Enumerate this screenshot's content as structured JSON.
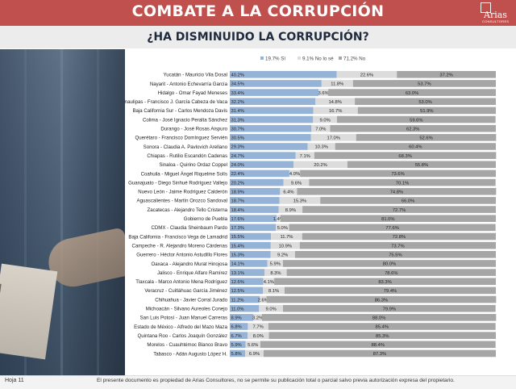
{
  "header": {
    "title": "COMBATE A LA CORRUPCIÓN",
    "logo_text": "Arias",
    "logo_subtitle": "CONSULTORES",
    "question": "¿HA DISMINUIDO LA CORRUPCIÓN?"
  },
  "photo": {
    "bill_text": "50 EURO"
  },
  "footer": {
    "page_label": "Hoja 11",
    "disclaimer": "El presente documento es propiedad de Arias Consultores, no se permite su publicación total o parcial salvo previa autorización expresa del propietario."
  },
  "colors": {
    "header_bg": "#c0504d",
    "si": "#95b3d7",
    "nolose": "#dcdcdc",
    "no": "#a6a6a6"
  },
  "chart_data": {
    "type": "bar",
    "orientation": "horizontal",
    "stacked": true,
    "percent_suffix": "%",
    "legend": {
      "placement": "top-right",
      "entries": [
        "19.7% Sí",
        "9.1% No lo sé",
        "71.2% No"
      ]
    },
    "categories": [
      "Yucatán - Mauricio Vila Dosal",
      "Nayarit - Antonio Echevarría García",
      "Hidalgo - Omar Fayad Meneses",
      "Tamaulipas - Francisco J. García Cabeza de Vaca",
      "Baja California Sur - Carlos Mendoza Davis",
      "Colima - José Ignacio Peralta Sánchez",
      "Durango - José Rosas Aispuro",
      "Querétaro - Francisco Domínguez Servién",
      "Sonora - Claudia A. Pavlovich Arellano",
      "Chiapas - Rutilio Escandón Cadenas",
      "Sinaloa - Quirino Ordaz Coppel",
      "Coahuila - Miguel Ángel Riquelme Solís",
      "Guanajuato - Diego Sinhué Rodríguez Vallejo",
      "Nuevo León - Jaime Rodríguez Calderón",
      "Aguascalientes - Martín Orozco Sandoval",
      "Zacatecas - Alejandro Tello Cristerna",
      "Gobierno de Puebla",
      "CDMX - Claudia Sheinbaum Pardo",
      "Baja California - Francisco Vega de Lamadrid",
      "Campeche - R. Alejandro Moreno Cárdenas",
      "Guerrero - Héctor Antonio Astudillo Flores",
      "Oaxaca - Alejandro Murat Hinojosa",
      "Jalisco - Enrique Alfaro Ramírez",
      "Tlaxcala - Marco Antonio Mena Rodríguez",
      "Veracruz - Cuitláhuac García Jiménez",
      "Chihuahua - Javier Corral Jurado",
      "Michoacán - Silvano Aureoles Conejo",
      "San Luis Potosí - Juan Manuel Carreras",
      "Estado de México - Alfredo del Mazo Maza",
      "Quintana Roo - Carlos Joaquín González",
      "Morelos - Cuauhtémoc Blanco Bravo",
      "Tabasco - Adán Augusto López H."
    ],
    "series": [
      {
        "name": "Sí",
        "color": "#95b3d7",
        "values": [
          40.2,
          34.5,
          33.4,
          32.2,
          31.4,
          31.3,
          30.7,
          30.5,
          29.3,
          24.7,
          24.0,
          22.4,
          20.2,
          18.9,
          18.7,
          18.4,
          17.6,
          17.3,
          15.5,
          15.4,
          15.3,
          14.1,
          13.1,
          12.6,
          12.5,
          11.2,
          11.0,
          8.9,
          6.8,
          6.7,
          5.9,
          5.8
        ]
      },
      {
        "name": "No lo sé",
        "color": "#dcdcdc",
        "values": [
          22.6,
          11.8,
          3.6,
          14.8,
          16.7,
          9.0,
          7.0,
          17.0,
          10.3,
          7.1,
          20.2,
          4.0,
          9.6,
          6.4,
          15.3,
          8.9,
          1.4,
          5.0,
          11.7,
          10.9,
          9.2,
          5.9,
          8.3,
          4.1,
          8.1,
          2.6,
          9.0,
          3.2,
          7.7,
          8.0,
          5.6,
          6.9
        ]
      },
      {
        "name": "No",
        "color": "#a6a6a6",
        "values": [
          37.2,
          53.7,
          63.0,
          53.0,
          51.9,
          59.6,
          62.3,
          52.6,
          60.4,
          68.3,
          55.8,
          73.6,
          70.1,
          74.8,
          66.0,
          72.7,
          81.0,
          77.6,
          72.8,
          73.7,
          75.5,
          80.0,
          78.6,
          83.3,
          79.4,
          86.3,
          79.9,
          88.0,
          85.4,
          85.3,
          88.4,
          87.3
        ]
      }
    ],
    "xlim": [
      0,
      100
    ]
  }
}
